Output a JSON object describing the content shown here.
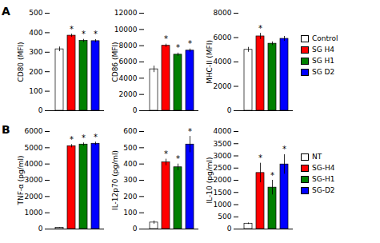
{
  "chart_data": [
    {
      "type": "bar",
      "annotations": [
        "A"
      ],
      "ylabel": "CD80 (MFI)",
      "categories": [
        "Control",
        "SG H4",
        "SG H1",
        "SG D2"
      ],
      "colors": [
        "white",
        "red",
        "green",
        "blue"
      ],
      "values": [
        315,
        385,
        358,
        357
      ],
      "errors": [
        12,
        8,
        8,
        8
      ],
      "significance": [
        null,
        "*",
        "*",
        "*"
      ],
      "ylim": [
        0,
        500
      ],
      "yticks": [
        0,
        100,
        200,
        300,
        400,
        500
      ],
      "tick_labels": "y"
    },
    {
      "type": "bar",
      "ylabel": "CD86 (MFI)",
      "categories": [
        "Control",
        "SG H4",
        "SG H1",
        "SG D2"
      ],
      "colors": [
        "white",
        "red",
        "green",
        "blue"
      ],
      "values": [
        5100,
        8000,
        6900,
        7400
      ],
      "errors": [
        400,
        200,
        200,
        200
      ],
      "significance": [
        null,
        "*",
        "*",
        "*"
      ],
      "ylim": [
        0,
        12000
      ],
      "yticks": [
        0,
        2000,
        4000,
        6000,
        8000,
        10000,
        12000
      ],
      "tick_labels": "y"
    },
    {
      "type": "bar",
      "ylabel": "MHC-II (MFI)",
      "categories": [
        "Control",
        "SG H4",
        "SG H1",
        "SG D2"
      ],
      "colors": [
        "white",
        "red",
        "green",
        "blue"
      ],
      "values": [
        5000,
        6100,
        5500,
        5900
      ],
      "errors": [
        200,
        250,
        150,
        200
      ],
      "significance": [
        null,
        "*",
        null,
        null
      ],
      "ylim": [
        0,
        8000
      ],
      "yticks": [
        0,
        2000,
        4000,
        6000,
        8000
      ],
      "tick_labels": "y",
      "legend": "right"
    },
    {
      "type": "bar",
      "annotations": [
        "B"
      ],
      "ylabel": "TNF-α (pg/ml)",
      "categories": [
        "NT",
        "SG-H4",
        "SG-H1",
        "SG-D2"
      ],
      "colors": [
        "white",
        "red",
        "green",
        "blue"
      ],
      "values": [
        80,
        5100,
        5200,
        5250
      ],
      "errors": [
        20,
        100,
        100,
        100
      ],
      "significance": [
        null,
        "*",
        "*",
        "*"
      ],
      "ylim": [
        0,
        6000
      ],
      "yticks": [
        0,
        1000,
        2000,
        3000,
        4000,
        5000,
        6000
      ],
      "tick_labels": "y"
    },
    {
      "type": "bar",
      "ylabel": "IL-12p70 (pg/ml)",
      "categories": [
        "NT",
        "SG-H4",
        "SG-H1",
        "SG-D2"
      ],
      "colors": [
        "white",
        "red",
        "green",
        "blue"
      ],
      "values": [
        40,
        410,
        380,
        520
      ],
      "errors": [
        10,
        20,
        20,
        50
      ],
      "significance": [
        null,
        "*",
        "*",
        "*"
      ],
      "ylim": [
        0,
        600
      ],
      "yticks": [
        0,
        100,
        200,
        300,
        400,
        500,
        600
      ],
      "tick_labels": "y"
    },
    {
      "type": "bar",
      "ylabel": "IL-10 (pg/ml)",
      "categories": [
        "NT",
        "SG-H4",
        "SG-H1",
        "SG-D2"
      ],
      "colors": [
        "white",
        "red",
        "green",
        "blue"
      ],
      "values": [
        220,
        2300,
        1700,
        2650
      ],
      "errors": [
        30,
        400,
        300,
        400
      ],
      "significance": [
        null,
        "*",
        "*",
        "*"
      ],
      "ylim": [
        0,
        4000
      ],
      "yticks": [
        0,
        500,
        1000,
        1500,
        2000,
        2500,
        3000,
        3500,
        4000
      ],
      "tick_labels": "y",
      "legend": "right"
    }
  ]
}
